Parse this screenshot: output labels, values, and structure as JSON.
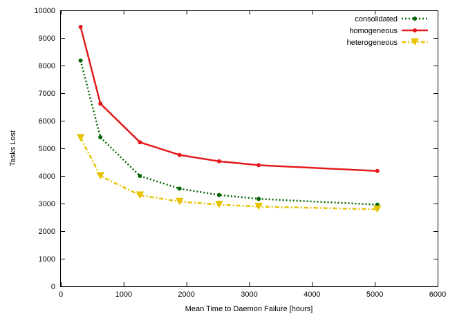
{
  "chart_data": {
    "type": "line",
    "xlabel": "Mean Time to Daemon Failure [hours]",
    "ylabel": "Tasks Lost",
    "xlim": [
      0,
      6000
    ],
    "ylim": [
      0,
      10000
    ],
    "xticks": [
      0,
      1000,
      2000,
      3000,
      4000,
      5000,
      6000
    ],
    "yticks": [
      0,
      1000,
      2000,
      3000,
      4000,
      5000,
      6000,
      7000,
      8000,
      9000,
      10000
    ],
    "grid": false,
    "legend_position": "top-right",
    "series": [
      {
        "name": "consolidated",
        "color": "#006400",
        "line_style": "dotted",
        "marker": "circle",
        "x": [
          315,
          630,
          1260,
          1890,
          2520,
          3150,
          5040
        ],
        "y": [
          8180,
          5400,
          4000,
          3540,
          3310,
          3170,
          2960
        ]
      },
      {
        "name": "homogeneous",
        "color": "#e31a1c",
        "line_style": "solid",
        "marker": "circle",
        "x": [
          315,
          630,
          1260,
          1890,
          2520,
          3150,
          5040
        ],
        "y": [
          9400,
          6620,
          5220,
          4760,
          4530,
          4390,
          4180
        ]
      },
      {
        "name": "heterogeneous",
        "color": "#e6c200",
        "line_style": "dash-dot",
        "marker": "triangle-down",
        "x": [
          315,
          630,
          1260,
          1890,
          2520,
          3150,
          5040
        ],
        "y": [
          5380,
          4000,
          3300,
          3070,
          2960,
          2890,
          2790
        ]
      }
    ]
  }
}
